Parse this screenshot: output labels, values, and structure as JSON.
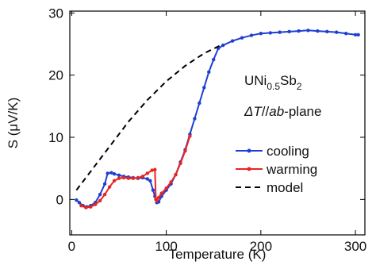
{
  "chart_data": {
    "type": "line",
    "x_label": "Temperature (K)",
    "y_label": "S (μV/K)",
    "xlim": [
      -2,
      310
    ],
    "ylim": [
      -5.7,
      30.3
    ],
    "xticks": [
      0,
      100,
      200,
      300
    ],
    "yticks": [
      0,
      10,
      20,
      30
    ],
    "legend": "center right",
    "annotations": [
      [
        "UNi",
        "0.5",
        "Sb",
        "2"
      ],
      [
        "ΔT",
        "//",
        "ab",
        "-plane"
      ]
    ],
    "series": [
      {
        "name": "cooling",
        "color": "#1f3fd1",
        "markers": true,
        "x": [
          5,
          8,
          12,
          16,
          20,
          25,
          30,
          35,
          38,
          42,
          45,
          50,
          55,
          60,
          65,
          70,
          75,
          80,
          83,
          86,
          88,
          90,
          92,
          95,
          100,
          105,
          110,
          115,
          120,
          125,
          130,
          135,
          140,
          145,
          150,
          155,
          160,
          170,
          180,
          190,
          200,
          210,
          220,
          230,
          240,
          250,
          260,
          270,
          280,
          290,
          300,
          303
        ],
        "values": [
          -0.1,
          -0.5,
          -1,
          -1.2,
          -1,
          -0.5,
          0.8,
          2.5,
          4.2,
          4.3,
          4.1,
          3.9,
          3.7,
          3.6,
          3.5,
          3.4,
          3.5,
          3.3,
          3.0,
          1.5,
          0.5,
          -0.5,
          -0.4,
          0.5,
          1.5,
          2.5,
          4,
          6,
          8,
          10.5,
          13,
          15.5,
          18,
          20.5,
          22.5,
          24.3,
          24.8,
          25.5,
          26,
          26.4,
          26.7,
          26.8,
          26.9,
          27,
          27.1,
          27.2,
          27.1,
          27,
          26.9,
          26.7,
          26.5,
          26.5
        ]
      },
      {
        "name": "warming",
        "color": "#e8251f",
        "markers": true,
        "x": [
          10,
          15,
          20,
          25,
          30,
          35,
          40,
          45,
          50,
          55,
          60,
          65,
          70,
          75,
          80,
          85,
          88,
          89,
          90,
          92,
          95,
          100,
          105,
          110,
          115,
          120,
          125
        ],
        "values": [
          -1,
          -1.3,
          -1.2,
          -0.8,
          -0.2,
          0.8,
          2,
          3,
          3.4,
          3.5,
          3.4,
          3.4,
          3.5,
          3.7,
          4.2,
          4.7,
          4.8,
          0,
          -0.2,
          0.3,
          1,
          1.8,
          2.8,
          4,
          5.8,
          7.8,
          10.2
        ]
      },
      {
        "name": "model",
        "color": "#000000",
        "dashed": true,
        "markers": false,
        "x": [
          5,
          20,
          40,
          60,
          80,
          100,
          120,
          140,
          160
        ],
        "values": [
          1.5,
          4.5,
          8.5,
          12.5,
          16,
          19,
          21.5,
          23.5,
          25
        ]
      }
    ]
  }
}
